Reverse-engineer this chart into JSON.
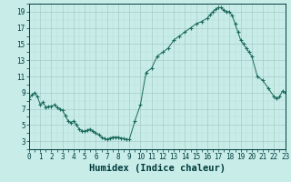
{
  "title": "",
  "xlabel": "Humidex (Indice chaleur)",
  "ylabel": "",
  "x_values": [
    0,
    0.25,
    0.5,
    0.75,
    1,
    1.25,
    1.5,
    1.75,
    2,
    2.25,
    2.5,
    2.75,
    3,
    3.25,
    3.5,
    3.75,
    4,
    4.25,
    4.5,
    4.75,
    5,
    5.25,
    5.5,
    5.75,
    6,
    6.25,
    6.5,
    6.75,
    7,
    7.25,
    7.5,
    7.75,
    8,
    8.25,
    8.5,
    8.75,
    9,
    9.5,
    10,
    10.5,
    11,
    11.5,
    12,
    12.5,
    13,
    13.5,
    14,
    14.5,
    15,
    15.5,
    16,
    16.25,
    16.5,
    16.75,
    17,
    17.25,
    17.5,
    17.75,
    18,
    18.25,
    18.5,
    18.75,
    19,
    19.25,
    19.5,
    19.75,
    20,
    20.5,
    21,
    21.5,
    22,
    22.25,
    22.5,
    22.75,
    23
  ],
  "y_values": [
    8.2,
    8.7,
    9.0,
    8.5,
    7.5,
    7.8,
    7.2,
    7.3,
    7.3,
    7.5,
    7.2,
    7.0,
    6.8,
    6.2,
    5.5,
    5.3,
    5.5,
    5.0,
    4.5,
    4.3,
    4.2,
    4.4,
    4.5,
    4.2,
    4.0,
    3.8,
    3.5,
    3.3,
    3.2,
    3.4,
    3.5,
    3.5,
    3.5,
    3.4,
    3.3,
    3.2,
    3.2,
    5.5,
    7.5,
    11.5,
    12.0,
    13.5,
    14.0,
    14.5,
    15.5,
    16.0,
    16.5,
    17.0,
    17.5,
    17.8,
    18.2,
    18.6,
    19.0,
    19.3,
    19.5,
    19.5,
    19.2,
    19.0,
    19.0,
    18.5,
    17.5,
    16.5,
    15.5,
    15.0,
    14.5,
    14.0,
    13.5,
    11.0,
    10.5,
    9.5,
    8.5,
    8.3,
    8.5,
    9.2,
    9.0
  ],
  "line_color": "#1a6b5a",
  "marker": "+",
  "marker_color": "#1a6b5a",
  "bg_color": "#c8ece8",
  "grid_minor_color": "#b8dcd8",
  "grid_major_color": "#a8ccc8",
  "xlim": [
    0,
    23
  ],
  "ylim": [
    2,
    20
  ],
  "yticks": [
    3,
    5,
    7,
    9,
    11,
    13,
    15,
    17,
    19
  ],
  "xticks": [
    0,
    1,
    2,
    3,
    4,
    5,
    6,
    7,
    8,
    9,
    10,
    11,
    12,
    13,
    14,
    15,
    16,
    17,
    18,
    19,
    20,
    21,
    22,
    23
  ],
  "font_color": "#003c3c",
  "tick_fontsize": 5.5,
  "xlabel_fontsize": 7.5
}
